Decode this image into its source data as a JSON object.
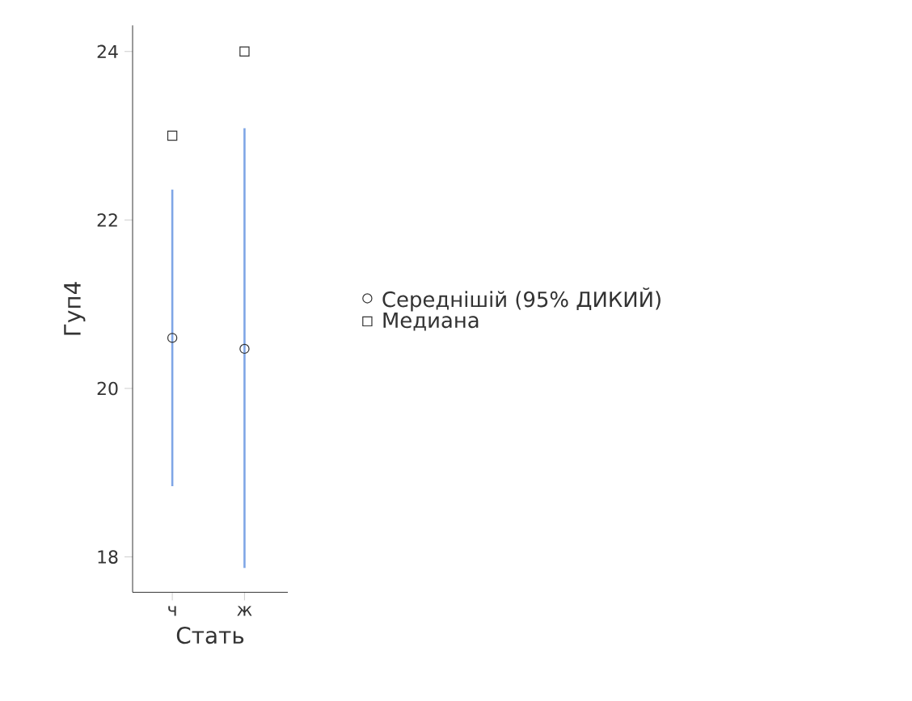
{
  "chart_data": {
    "type": "scatter",
    "xlabel": "Стать",
    "ylabel": "Гуп4",
    "categories": [
      "ч",
      "ж"
    ],
    "series": [
      {
        "name": "Середнішій (95% ДИКИЙ)",
        "color": "#333333",
        "marker": "circle",
        "values": [
          20.6,
          20.47
        ],
        "errors": [
          [
            18.84,
            22.36
          ],
          [
            17.87,
            23.09
          ]
        ]
      },
      {
        "name": "Медиана",
        "color": "#333333",
        "marker": "square",
        "values": [
          23.0,
          24.0
        ]
      }
    ],
    "ylim": [
      17.58,
      24.31
    ],
    "yticks": [
      18,
      20,
      22,
      24
    ],
    "grid": false,
    "legend": "right"
  }
}
